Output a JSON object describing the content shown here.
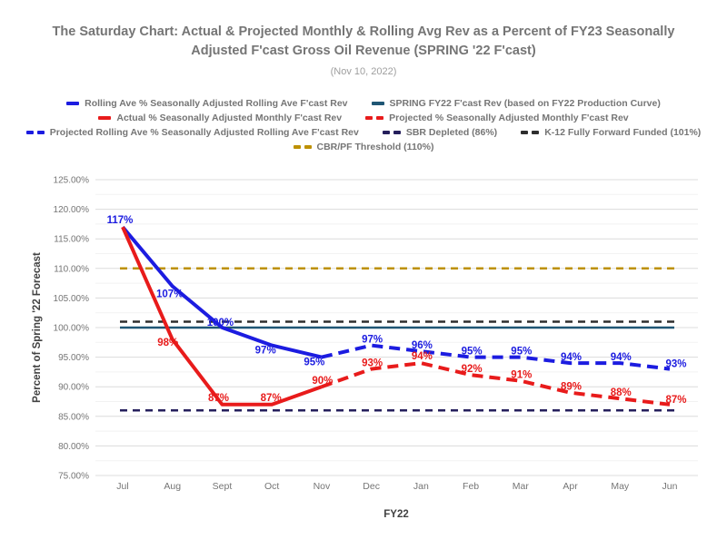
{
  "header": {
    "title_line1": "The Saturday Chart: Actual & Projected Monthly & Rolling Avg Rev as a Percent of FY23 Seasonally",
    "title_line2": "Adjusted F'cast Gross Oil Revenue (SPRING '22 F'cast)",
    "subtitle": "(Nov 10, 2022)"
  },
  "legend": {
    "rows": [
      [
        {
          "swatch": "solid",
          "color": "#1c1ce0",
          "label": "Rolling Ave % Seasonally Adjusted Rolling Ave F'cast Rev"
        },
        {
          "swatch": "solid",
          "color": "#1f5674",
          "label": "SPRING FY22 F'cast Rev (based on FY22 Production Curve)"
        }
      ],
      [
        {
          "swatch": "solid",
          "color": "#e81b1b",
          "label": "Actual % Seasonally Adjusted Monthly F'cast Rev"
        },
        {
          "swatch": "dashed",
          "color": "#e81b1b",
          "label": "Projected % Seasonally Adjusted Monthly F'cast Rev"
        }
      ],
      [
        {
          "swatch": "dashed",
          "color": "#1c1ce0",
          "label": "Projected Rolling Ave % Seasonally Adjusted Rolling Ave F'cast Rev"
        },
        {
          "swatch": "dashed",
          "color": "#251f5c",
          "label": "SBR Depleted (86%)"
        },
        {
          "swatch": "dashed",
          "color": "#2e2e2e",
          "label": "K-12 Fully Forward Funded (101%)"
        }
      ],
      [
        {
          "swatch": "dashed",
          "color": "#bd9000",
          "label": "CBR/PF Threshold (110%)"
        }
      ]
    ]
  },
  "chart_data": {
    "type": "line",
    "title": "The Saturday Chart: Actual & Projected Monthly & Rolling Avg Rev as a Percent of FY23 Seasonally Adjusted F'cast Gross Oil Revenue (SPRING '22 F'cast)",
    "subtitle": "(Nov 10, 2022)",
    "categories": [
      "Jul",
      "Aug",
      "Sept",
      "Oct",
      "Nov",
      "Dec",
      "Jan",
      "Feb",
      "Mar",
      "Apr",
      "May",
      "Jun"
    ],
    "xlabel": "FY22",
    "ylabel": "Percent of Spring '22 Forecast",
    "ylim": [
      75,
      125
    ],
    "y_major_step": 5,
    "y_minor_step": 2.5,
    "y_tick_labels": [
      "75.00%",
      "80.00%",
      "85.00%",
      "90.00%",
      "95.00%",
      "100.00%",
      "105.00%",
      "110.00%",
      "115.00%",
      "120.00%",
      "125.00%"
    ],
    "grid": "horizontal-only",
    "legend_position": "top",
    "series": [
      {
        "name": "Rolling Ave % Seasonally Adjusted Rolling Ave F'cast Rev",
        "color": "#1c1ce0",
        "style": "solid",
        "start_index": 0,
        "values": [
          117,
          107,
          100,
          97,
          95
        ],
        "labels": [
          "117%",
          "107%",
          "100%",
          "97%",
          "95%"
        ]
      },
      {
        "name": "Projected Rolling Ave % Seasonally Adjusted Rolling Ave F'cast Rev",
        "color": "#1c1ce0",
        "style": "dashed",
        "start_index": 4,
        "values": [
          95,
          97,
          96,
          95,
          95,
          94,
          94,
          93
        ],
        "labels": [
          null,
          "97%",
          "96%",
          "95%",
          "95%",
          "94%",
          "94%",
          "93%"
        ]
      },
      {
        "name": "Actual % Seasonally Adjusted Monthly F'cast Rev",
        "color": "#e81b1b",
        "style": "solid",
        "start_index": 0,
        "values": [
          117,
          98,
          87,
          87,
          90
        ],
        "labels": [
          null,
          "98%",
          "87%",
          "87%",
          "90%"
        ]
      },
      {
        "name": "Projected % Seasonally Adjusted Monthly F'cast Rev",
        "color": "#e81b1b",
        "style": "dashed",
        "start_index": 4,
        "values": [
          90,
          93,
          94,
          92,
          91,
          89,
          88,
          87
        ],
        "labels": [
          null,
          "93%",
          "94%",
          "92%",
          "91%",
          "89%",
          "88%",
          "87%"
        ]
      }
    ],
    "reference_lines": [
      {
        "name": "CBR/PF Threshold (110%)",
        "value": 110,
        "color": "#bd9000",
        "style": "dashed"
      },
      {
        "name": "K-12 Fully Forward Funded (101%)",
        "value": 101,
        "color": "#2e2e2e",
        "style": "dashed"
      },
      {
        "name": "SPRING FY22 F'cast Rev (based on FY22 Production Curve)",
        "value": 100,
        "color": "#1f5674",
        "style": "solid"
      },
      {
        "name": "SBR Depleted (86%)",
        "value": 86,
        "color": "#251f5c",
        "style": "dashed"
      }
    ]
  }
}
